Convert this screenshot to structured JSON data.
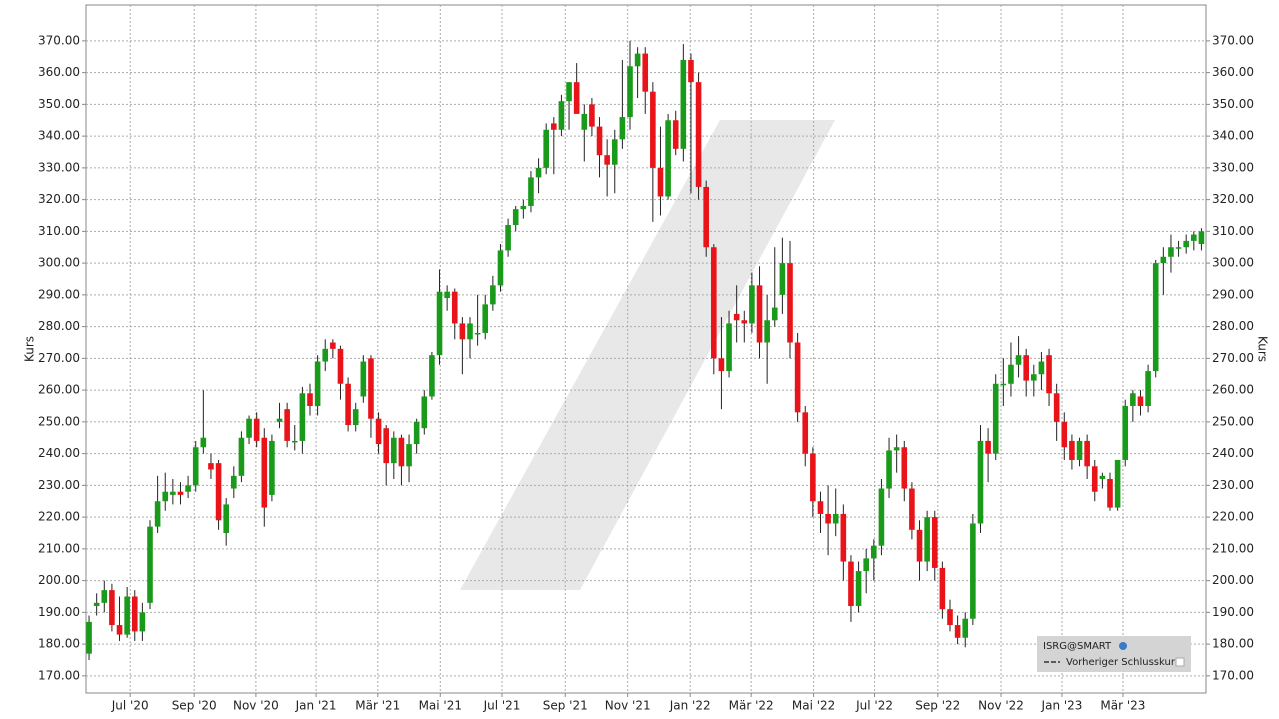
{
  "chart_data": {
    "type": "candlestick",
    "y_axis_label": "Kurs",
    "series": [
      {
        "name": "ISRG@SMART",
        "up_color": "#1a9a1a",
        "down_color": "#e8141a",
        "values": [
          [
            177,
            189,
            175,
            187
          ],
          [
            192,
            196,
            189,
            193
          ],
          [
            193,
            200,
            190,
            197
          ],
          [
            197,
            199,
            184,
            186
          ],
          [
            186,
            195,
            181,
            183
          ],
          [
            183,
            198,
            182,
            195
          ],
          [
            195,
            197,
            181,
            184
          ],
          [
            184,
            193,
            181,
            190
          ],
          [
            193,
            219,
            191,
            217
          ],
          [
            217,
            233,
            215,
            225
          ],
          [
            225,
            234,
            222,
            228
          ],
          [
            227,
            232,
            224,
            228
          ],
          [
            228,
            231,
            224,
            227
          ],
          [
            228,
            233,
            226,
            230
          ],
          [
            230,
            244,
            228,
            242
          ],
          [
            242,
            260,
            240,
            245
          ],
          [
            237,
            240,
            232,
            235
          ],
          [
            237,
            238,
            216,
            219
          ],
          [
            215,
            226,
            211,
            224
          ],
          [
            229,
            236,
            226,
            233
          ],
          [
            233,
            247,
            231,
            245
          ],
          [
            245,
            252,
            243,
            251
          ],
          [
            251,
            253,
            242,
            244
          ],
          [
            245,
            248,
            217,
            223
          ],
          [
            227,
            246,
            225,
            244
          ],
          [
            250,
            256,
            248,
            251
          ],
          [
            254,
            256,
            242,
            244
          ],
          [
            244,
            249,
            241,
            244
          ],
          [
            244,
            261,
            240,
            259
          ],
          [
            259,
            262,
            252,
            255
          ],
          [
            255,
            271,
            252,
            269
          ],
          [
            269,
            276,
            266,
            273
          ],
          [
            275,
            276,
            270,
            273
          ],
          [
            273,
            274,
            257,
            262
          ],
          [
            262,
            264,
            247,
            249
          ],
          [
            249,
            256,
            247,
            254
          ],
          [
            258,
            271,
            256,
            269
          ],
          [
            270,
            271,
            245,
            251
          ],
          [
            251,
            253,
            240,
            243
          ],
          [
            248,
            249,
            230,
            237
          ],
          [
            237,
            247,
            232,
            245
          ],
          [
            245,
            246,
            230,
            236
          ],
          [
            236,
            246,
            231,
            243
          ],
          [
            243,
            251,
            240,
            250
          ],
          [
            248,
            260,
            246,
            258
          ],
          [
            258,
            272,
            257,
            271
          ],
          [
            271,
            298,
            268,
            291
          ],
          [
            289,
            293,
            285,
            291
          ],
          [
            291,
            292,
            276,
            281
          ],
          [
            281,
            283,
            265,
            276
          ],
          [
            276,
            283,
            270,
            281
          ],
          [
            278,
            290,
            274,
            278
          ],
          [
            278,
            290,
            276,
            287
          ],
          [
            287,
            296,
            285,
            293
          ],
          [
            293,
            306,
            291,
            304
          ],
          [
            304,
            314,
            302,
            312
          ],
          [
            312,
            318,
            310,
            317
          ],
          [
            317,
            320,
            314,
            318
          ],
          [
            318,
            329,
            316,
            327
          ],
          [
            327,
            333,
            322,
            330
          ],
          [
            330,
            344,
            328,
            342
          ],
          [
            344,
            346,
            328,
            342
          ],
          [
            342,
            353,
            340,
            351
          ],
          [
            351,
            357,
            342,
            357
          ],
          [
            357,
            363,
            350,
            347
          ],
          [
            342,
            350,
            332,
            347
          ],
          [
            350,
            352,
            340,
            343
          ],
          [
            343,
            346,
            327,
            334
          ],
          [
            334,
            339,
            321,
            331
          ],
          [
            331,
            342,
            322,
            339
          ],
          [
            339,
            364,
            336,
            346
          ],
          [
            346,
            370,
            342,
            362
          ],
          [
            362,
            368,
            352,
            366
          ],
          [
            366,
            368,
            347,
            354
          ],
          [
            354,
            357,
            313,
            330
          ],
          [
            330,
            343,
            315,
            321
          ],
          [
            321,
            347,
            320,
            345
          ],
          [
            345,
            348,
            334,
            336
          ],
          [
            336,
            369,
            332,
            364
          ],
          [
            364,
            366,
            322,
            357
          ],
          [
            357,
            360,
            320,
            324
          ],
          [
            324,
            326,
            302,
            305
          ],
          [
            305,
            306,
            265,
            270
          ],
          [
            270,
            283,
            254,
            266
          ],
          [
            266,
            285,
            264,
            281
          ],
          [
            284,
            293,
            275,
            282
          ],
          [
            282,
            285,
            275,
            281
          ],
          [
            281,
            297,
            278,
            293
          ],
          [
            293,
            299,
            270,
            275
          ],
          [
            275,
            290,
            262,
            282
          ],
          [
            282,
            305,
            280,
            286
          ],
          [
            290,
            308,
            284,
            300
          ],
          [
            300,
            307,
            270,
            275
          ],
          [
            275,
            278,
            250,
            253
          ],
          [
            253,
            255,
            236,
            240
          ],
          [
            240,
            242,
            220,
            225
          ],
          [
            225,
            228,
            215,
            221
          ],
          [
            221,
            230,
            208,
            218
          ],
          [
            218,
            229,
            214,
            221
          ],
          [
            221,
            224,
            200,
            206
          ],
          [
            206,
            208,
            187,
            192
          ],
          [
            192,
            206,
            190,
            203
          ],
          [
            203,
            210,
            196,
            207
          ],
          [
            207,
            213,
            200,
            211
          ],
          [
            211,
            232,
            208,
            229
          ],
          [
            229,
            245,
            226,
            241
          ],
          [
            241,
            246,
            234,
            242
          ],
          [
            242,
            244,
            225,
            229
          ],
          [
            229,
            231,
            213,
            216
          ],
          [
            216,
            219,
            200,
            206
          ],
          [
            206,
            222,
            203,
            220
          ],
          [
            220,
            222,
            200,
            204
          ],
          [
            204,
            206,
            188,
            191
          ],
          [
            191,
            194,
            184,
            186
          ],
          [
            186,
            189,
            180,
            182
          ],
          [
            182,
            190,
            179,
            188
          ],
          [
            188,
            221,
            186,
            218
          ],
          [
            218,
            249,
            215,
            244
          ],
          [
            244,
            248,
            231,
            240
          ],
          [
            240,
            265,
            238,
            262
          ],
          [
            262,
            270,
            255,
            262
          ],
          [
            262,
            275,
            258,
            268
          ],
          [
            268,
            277,
            264,
            271
          ],
          [
            271,
            273,
            258,
            263
          ],
          [
            263,
            268,
            258,
            265
          ],
          [
            265,
            272,
            260,
            269
          ],
          [
            271,
            273,
            255,
            259
          ],
          [
            259,
            262,
            244,
            250
          ],
          [
            250,
            253,
            238,
            242
          ],
          [
            244,
            246,
            235,
            238
          ],
          [
            238,
            245,
            236,
            244
          ],
          [
            244,
            246,
            232,
            236
          ],
          [
            236,
            238,
            225,
            228
          ],
          [
            232,
            234,
            229,
            233
          ],
          [
            232,
            234,
            222,
            223
          ],
          [
            223,
            238,
            222,
            238
          ],
          [
            238,
            257,
            236,
            255
          ],
          [
            255,
            260,
            250,
            259
          ],
          [
            258,
            260,
            252,
            255
          ],
          [
            255,
            268,
            253,
            266
          ],
          [
            266,
            301,
            264,
            300
          ],
          [
            300,
            305,
            290,
            302
          ],
          [
            302,
            309,
            297,
            305
          ],
          [
            305,
            307,
            302,
            305
          ],
          [
            305,
            309,
            303,
            307
          ],
          [
            307,
            310,
            304,
            309
          ],
          [
            306,
            311,
            304,
            310
          ]
        ]
      }
    ],
    "reference_line_label": "Vorheriger Schlusskurs",
    "xlim": [
      -0.4,
      146.6
    ],
    "xticks": [
      {
        "value": 5.4,
        "label": "Jul '20"
      },
      {
        "value": 13.8,
        "label": "Sep '20"
      },
      {
        "value": 21.9,
        "label": "Nov '20"
      },
      {
        "value": 29.8,
        "label": "Jan '21"
      },
      {
        "value": 37.9,
        "label": "Mär '21"
      },
      {
        "value": 46.1,
        "label": "Mai '21"
      },
      {
        "value": 54.2,
        "label": "Jul '21"
      },
      {
        "value": 62.5,
        "label": "Sep '21"
      },
      {
        "value": 70.7,
        "label": "Nov '21"
      },
      {
        "value": 78.9,
        "label": "Jan '22"
      },
      {
        "value": 86.9,
        "label": "Mär '22"
      },
      {
        "value": 95.1,
        "label": "Mai '22"
      },
      {
        "value": 103.1,
        "label": "Jul '22"
      },
      {
        "value": 111.4,
        "label": "Sep '22"
      },
      {
        "value": 119.7,
        "label": "Nov '22"
      },
      {
        "value": 127.7,
        "label": "Jan '23"
      },
      {
        "value": 135.7,
        "label": "Mär '23"
      }
    ],
    "ylim": [
      164.6,
      381.3
    ],
    "yticks": [
      {
        "value": 170,
        "label": "170.00"
      },
      {
        "value": 180,
        "label": "180.00"
      },
      {
        "value": 190,
        "label": "190.00"
      },
      {
        "value": 200,
        "label": "200.00"
      },
      {
        "value": 210,
        "label": "210.00"
      },
      {
        "value": 220,
        "label": "220.00"
      },
      {
        "value": 230,
        "label": "230.00"
      },
      {
        "value": 240,
        "label": "240.00"
      },
      {
        "value": 250,
        "label": "250.00"
      },
      {
        "value": 260,
        "label": "260.00"
      },
      {
        "value": 270,
        "label": "270.00"
      },
      {
        "value": 280,
        "label": "280.00"
      },
      {
        "value": 290,
        "label": "290.00"
      },
      {
        "value": 300,
        "label": "300.00"
      },
      {
        "value": 310,
        "label": "310.00"
      },
      {
        "value": 320,
        "label": "320.00"
      },
      {
        "value": 330,
        "label": "330.00"
      },
      {
        "value": 340,
        "label": "340.00"
      },
      {
        "value": 350,
        "label": "350.00"
      },
      {
        "value": 360,
        "label": "360.00"
      },
      {
        "value": 370,
        "label": "370.00"
      }
    ],
    "grid": true
  }
}
